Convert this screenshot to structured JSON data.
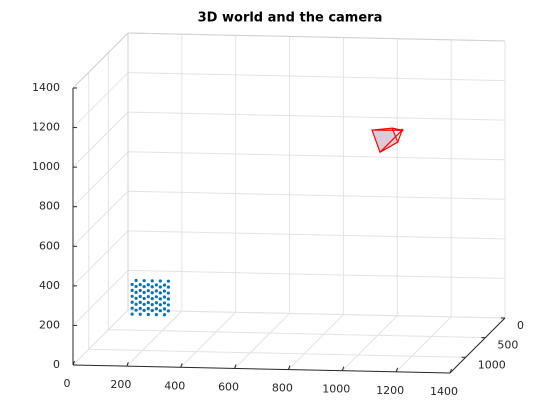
{
  "chart_data": {
    "type": "scatter3d",
    "title": "3D world and the camera",
    "xlim": [
      0,
      1400
    ],
    "ylim": [
      0,
      1400
    ],
    "zlim": [
      0,
      1400
    ],
    "xticks": [
      0,
      200,
      400,
      600,
      800,
      1000,
      1200,
      1400
    ],
    "yticks": [
      0,
      500,
      1000
    ],
    "zticks": [
      0,
      200,
      400,
      600,
      800,
      1000,
      1200,
      1400
    ],
    "grid": true,
    "series": [
      {
        "draw": "points",
        "color": "#0072bd",
        "x": [
          30,
          60,
          90,
          120,
          150,
          30,
          60,
          90,
          120,
          150,
          30,
          60,
          90,
          120,
          150,
          30,
          60,
          90,
          120,
          150,
          30,
          60,
          90,
          120,
          150,
          30,
          60,
          90,
          120,
          150,
          30,
          60,
          90,
          120,
          150,
          30,
          60,
          90,
          120,
          150,
          30,
          60,
          90,
          120,
          150,
          30,
          60,
          90,
          120,
          150,
          30,
          60,
          90,
          120,
          150,
          30,
          60,
          90,
          120,
          150
        ],
        "y": [
          0,
          0,
          0,
          0,
          0,
          0,
          0,
          0,
          0,
          0,
          0,
          0,
          0,
          0,
          0,
          0,
          0,
          0,
          0,
          0,
          0,
          0,
          0,
          0,
          0,
          0,
          0,
          0,
          0,
          0,
          100,
          100,
          100,
          100,
          100,
          100,
          100,
          100,
          100,
          100,
          100,
          100,
          100,
          100,
          100,
          100,
          100,
          100,
          100,
          100,
          100,
          100,
          100,
          100,
          100,
          100,
          100,
          100,
          100,
          100
        ],
        "z": [
          0,
          0,
          0,
          0,
          0,
          30,
          30,
          30,
          30,
          30,
          60,
          60,
          60,
          60,
          60,
          90,
          90,
          90,
          90,
          90,
          120,
          120,
          120,
          120,
          120,
          150,
          150,
          150,
          150,
          150,
          0,
          0,
          0,
          0,
          0,
          30,
          30,
          30,
          30,
          30,
          60,
          60,
          60,
          60,
          60,
          90,
          90,
          90,
          90,
          90,
          120,
          120,
          120,
          120,
          120,
          150,
          150,
          150,
          150,
          150
        ]
      },
      {
        "draw": "frustum",
        "color": "#ff0000",
        "fill": "#dccbd8",
        "x": [
          1083,
          979,
          1054,
          1075,
          1009
        ],
        "y": [
          450,
          500,
          500,
          500,
          500
        ],
        "z": [
          1029,
          1037,
          1049,
          979,
          926
        ]
      }
    ]
  }
}
